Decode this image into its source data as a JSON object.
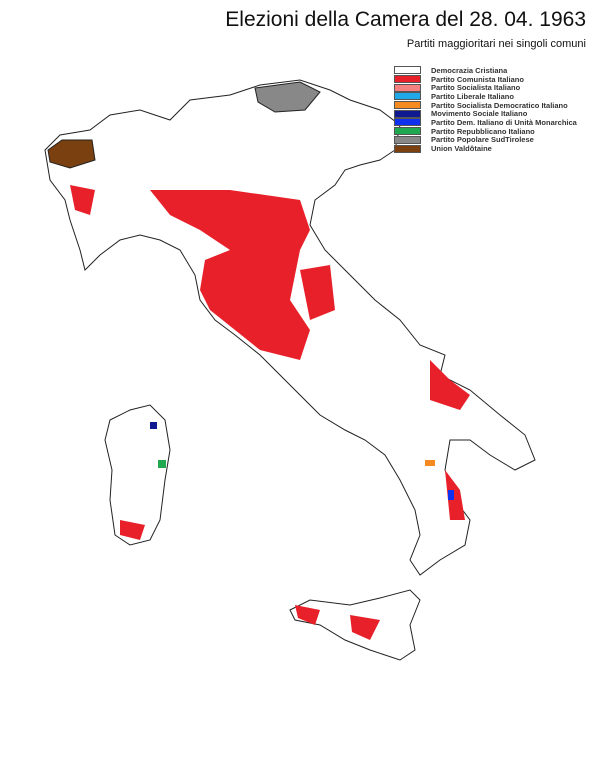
{
  "title": "Elezioni della Camera del 28. 04. 1963",
  "subtitle": "Partiti maggioritari nei singoli comuni",
  "legend": [
    {
      "label": "Democrazia Cristiana",
      "color": "#ffffff"
    },
    {
      "label": "Partito Comunista Italiano",
      "color": "#e8202a"
    },
    {
      "label": "Partito Socialista Italiano",
      "color": "#f58080"
    },
    {
      "label": "Partito Liberale Italiano",
      "color": "#20a8e8"
    },
    {
      "label": "Partito Socialista Democratico Italiano",
      "color": "#f58a20"
    },
    {
      "label": "Movimento Sociale Italiano",
      "color": "#101a90"
    },
    {
      "label": "Partito Dem. Italiano di Unità Monarchica",
      "color": "#1030f0"
    },
    {
      "label": "Partito Repubblicano Italiano",
      "color": "#20a850"
    },
    {
      "label": "Partito Popolare SudTirolese",
      "color": "#888888"
    },
    {
      "label": "Union Valdôtaine",
      "color": "#7a4010"
    }
  ]
}
